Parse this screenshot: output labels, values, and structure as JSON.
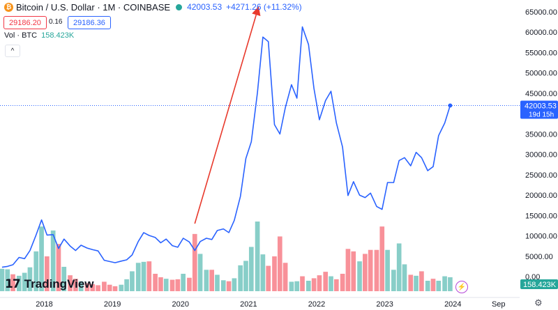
{
  "header": {
    "coin_symbol": "₿",
    "symbol": "Bitcoin / U.S. Dollar · 1M · COINBASE",
    "last_price": "42003.53",
    "change": "+4271.26 (+11.32%)"
  },
  "trade": {
    "sell_price": "29186.20",
    "spread": "0.16",
    "buy_price": "29186.36"
  },
  "volume": {
    "label": "Vol · BTC",
    "value": "158.423K"
  },
  "collapse_icon": "^",
  "branding": {
    "logo_mark": "17",
    "name": "TradingView"
  },
  "colors": {
    "line": "#2962ff",
    "vol_up": "#26a69a",
    "vol_down": "#f23645",
    "arrow": "#e8392c",
    "gridline": "#f0f3fa"
  },
  "chart_data": {
    "type": "line",
    "title": "Bitcoin / U.S. Dollar · 1M · COINBASE",
    "x_unit": "year",
    "y_axis_side": "right",
    "ylim": [
      0,
      67000
    ],
    "y_ticks": [
      0,
      5000,
      10000,
      15000,
      20000,
      25000,
      30000,
      35000,
      40000,
      45000,
      50000,
      55000,
      60000,
      65000
    ],
    "y_tick_labels": [
      "0.00",
      "5000.00",
      "10000.00",
      "15000.00",
      "20000.00",
      "25000.00",
      "30000.00",
      "35000.00",
      "40000.00",
      "45000.00",
      "50000.00",
      "55000.00",
      "60000.00",
      "65000.00"
    ],
    "x_tick_labels": [
      "2018",
      "2019",
      "2020",
      "2021",
      "2022",
      "2023",
      "2024",
      "Sep"
    ],
    "x_tick_values": [
      2018.0,
      2019.0,
      2020.0,
      2021.0,
      2022.0,
      2023.0,
      2024.0,
      2024.67
    ],
    "xlim": [
      2017.35,
      2024.98
    ],
    "series": [
      {
        "values": [
          [
            2017.38,
            2300
          ],
          [
            2017.46,
            2500
          ],
          [
            2017.54,
            2900
          ],
          [
            2017.63,
            4700
          ],
          [
            2017.71,
            4400
          ],
          [
            2017.79,
            6400
          ],
          [
            2017.88,
            10200
          ],
          [
            2017.96,
            13900
          ],
          [
            2018.04,
            10200
          ],
          [
            2018.13,
            10300
          ],
          [
            2018.21,
            6900
          ],
          [
            2018.29,
            9200
          ],
          [
            2018.38,
            7500
          ],
          [
            2018.46,
            6400
          ],
          [
            2018.54,
            7700
          ],
          [
            2018.63,
            7000
          ],
          [
            2018.71,
            6600
          ],
          [
            2018.79,
            6300
          ],
          [
            2018.88,
            4000
          ],
          [
            2018.96,
            3700
          ],
          [
            2019.04,
            3400
          ],
          [
            2019.13,
            3800
          ],
          [
            2019.21,
            4100
          ],
          [
            2019.29,
            5300
          ],
          [
            2019.38,
            8600
          ],
          [
            2019.46,
            10800
          ],
          [
            2019.54,
            10100
          ],
          [
            2019.63,
            9600
          ],
          [
            2019.71,
            8300
          ],
          [
            2019.79,
            9200
          ],
          [
            2019.88,
            7600
          ],
          [
            2019.96,
            7200
          ],
          [
            2020.04,
            9400
          ],
          [
            2020.13,
            8500
          ],
          [
            2020.21,
            6400
          ],
          [
            2020.29,
            8600
          ],
          [
            2020.38,
            9400
          ],
          [
            2020.46,
            9100
          ],
          [
            2020.54,
            11300
          ],
          [
            2020.63,
            11700
          ],
          [
            2020.71,
            10800
          ],
          [
            2020.79,
            13800
          ],
          [
            2020.88,
            19700
          ],
          [
            2020.96,
            29000
          ],
          [
            2021.04,
            33100
          ],
          [
            2021.13,
            45200
          ],
          [
            2021.21,
            58800
          ],
          [
            2021.29,
            57700
          ],
          [
            2021.38,
            37300
          ],
          [
            2021.46,
            35000
          ],
          [
            2021.54,
            41500
          ],
          [
            2021.63,
            47100
          ],
          [
            2021.71,
            43800
          ],
          [
            2021.79,
            61300
          ],
          [
            2021.88,
            57000
          ],
          [
            2021.96,
            46200
          ],
          [
            2022.04,
            38500
          ],
          [
            2022.13,
            43200
          ],
          [
            2022.21,
            45500
          ],
          [
            2022.29,
            37700
          ],
          [
            2022.38,
            31800
          ],
          [
            2022.46,
            19900
          ],
          [
            2022.54,
            23300
          ],
          [
            2022.63,
            20000
          ],
          [
            2022.71,
            19400
          ],
          [
            2022.79,
            20500
          ],
          [
            2022.88,
            17200
          ],
          [
            2022.96,
            16500
          ],
          [
            2023.04,
            23100
          ],
          [
            2023.13,
            23100
          ],
          [
            2023.21,
            28500
          ],
          [
            2023.29,
            29200
          ],
          [
            2023.38,
            27200
          ],
          [
            2023.46,
            30500
          ],
          [
            2023.54,
            29200
          ],
          [
            2023.63,
            26000
          ],
          [
            2023.71,
            27000
          ],
          [
            2023.79,
            34600
          ],
          [
            2023.88,
            37700
          ],
          [
            2023.96,
            42003.53
          ]
        ]
      }
    ],
    "last_price_marker": {
      "value": 42003.53,
      "label": "42003.53",
      "countdown": "19d 15h"
    },
    "volume": {
      "max_scale": 14000,
      "bars": [
        {
          "x": 2017.38,
          "v": 4500,
          "up": true
        },
        {
          "x": 2017.46,
          "v": 4400,
          "up": true
        },
        {
          "x": 2017.54,
          "v": 3400,
          "up": false
        },
        {
          "x": 2017.63,
          "v": 3100,
          "up": true
        },
        {
          "x": 2017.71,
          "v": 3700,
          "up": true
        },
        {
          "x": 2017.79,
          "v": 4800,
          "up": true
        },
        {
          "x": 2017.88,
          "v": 8000,
          "up": true
        },
        {
          "x": 2017.96,
          "v": 13000,
          "up": true
        },
        {
          "x": 2018.04,
          "v": 7000,
          "up": false
        },
        {
          "x": 2018.13,
          "v": 12200,
          "up": true
        },
        {
          "x": 2018.21,
          "v": 9500,
          "up": false
        },
        {
          "x": 2018.29,
          "v": 4900,
          "up": true
        },
        {
          "x": 2018.38,
          "v": 3200,
          "up": false
        },
        {
          "x": 2018.46,
          "v": 2500,
          "up": false
        },
        {
          "x": 2018.54,
          "v": 2000,
          "up": true
        },
        {
          "x": 2018.63,
          "v": 1600,
          "up": false
        },
        {
          "x": 2018.71,
          "v": 1400,
          "up": false
        },
        {
          "x": 2018.79,
          "v": 1200,
          "up": false
        },
        {
          "x": 2018.88,
          "v": 1900,
          "up": false
        },
        {
          "x": 2018.96,
          "v": 1300,
          "up": false
        },
        {
          "x": 2019.04,
          "v": 1000,
          "up": false
        },
        {
          "x": 2019.13,
          "v": 1300,
          "up": true
        },
        {
          "x": 2019.21,
          "v": 2400,
          "up": true
        },
        {
          "x": 2019.29,
          "v": 4000,
          "up": true
        },
        {
          "x": 2019.38,
          "v": 5700,
          "up": true
        },
        {
          "x": 2019.46,
          "v": 5900,
          "up": true
        },
        {
          "x": 2019.54,
          "v": 6000,
          "up": false
        },
        {
          "x": 2019.63,
          "v": 3500,
          "up": false
        },
        {
          "x": 2019.71,
          "v": 2800,
          "up": false
        },
        {
          "x": 2019.79,
          "v": 2500,
          "up": true
        },
        {
          "x": 2019.88,
          "v": 2300,
          "up": false
        },
        {
          "x": 2019.96,
          "v": 2400,
          "up": false
        },
        {
          "x": 2020.04,
          "v": 3500,
          "up": true
        },
        {
          "x": 2020.13,
          "v": 2700,
          "up": false
        },
        {
          "x": 2020.21,
          "v": 11500,
          "up": false
        },
        {
          "x": 2020.29,
          "v": 7500,
          "up": true
        },
        {
          "x": 2020.38,
          "v": 4300,
          "up": true
        },
        {
          "x": 2020.46,
          "v": 4300,
          "up": false
        },
        {
          "x": 2020.54,
          "v": 3300,
          "up": true
        },
        {
          "x": 2020.63,
          "v": 2200,
          "up": true
        },
        {
          "x": 2020.71,
          "v": 2000,
          "up": false
        },
        {
          "x": 2020.79,
          "v": 2600,
          "up": true
        },
        {
          "x": 2020.88,
          "v": 5200,
          "up": true
        },
        {
          "x": 2020.96,
          "v": 6100,
          "up": true
        },
        {
          "x": 2021.04,
          "v": 8900,
          "up": true
        },
        {
          "x": 2021.13,
          "v": 14000,
          "up": true
        },
        {
          "x": 2021.21,
          "v": 7400,
          "up": true
        },
        {
          "x": 2021.29,
          "v": 5100,
          "up": false
        },
        {
          "x": 2021.38,
          "v": 7000,
          "up": false
        },
        {
          "x": 2021.46,
          "v": 11000,
          "up": false
        },
        {
          "x": 2021.54,
          "v": 5700,
          "up": false
        },
        {
          "x": 2021.63,
          "v": 1900,
          "up": true
        },
        {
          "x": 2021.71,
          "v": 2000,
          "up": true
        },
        {
          "x": 2021.79,
          "v": 3000,
          "up": false
        },
        {
          "x": 2021.88,
          "v": 2100,
          "up": true
        },
        {
          "x": 2021.96,
          "v": 2600,
          "up": false
        },
        {
          "x": 2022.04,
          "v": 3200,
          "up": false
        },
        {
          "x": 2022.13,
          "v": 3900,
          "up": false
        },
        {
          "x": 2022.21,
          "v": 3000,
          "up": true
        },
        {
          "x": 2022.29,
          "v": 2400,
          "up": false
        },
        {
          "x": 2022.38,
          "v": 3500,
          "up": false
        },
        {
          "x": 2022.46,
          "v": 8500,
          "up": false
        },
        {
          "x": 2022.54,
          "v": 8000,
          "up": false
        },
        {
          "x": 2022.63,
          "v": 6000,
          "up": true
        },
        {
          "x": 2022.71,
          "v": 7500,
          "up": false
        },
        {
          "x": 2022.79,
          "v": 8300,
          "up": false
        },
        {
          "x": 2022.88,
          "v": 8300,
          "up": false
        },
        {
          "x": 2022.96,
          "v": 13000,
          "up": false
        },
        {
          "x": 2023.04,
          "v": 8300,
          "up": true
        },
        {
          "x": 2023.13,
          "v": 4300,
          "up": true
        },
        {
          "x": 2023.21,
          "v": 9600,
          "up": true
        },
        {
          "x": 2023.29,
          "v": 5400,
          "up": true
        },
        {
          "x": 2023.38,
          "v": 3300,
          "up": false
        },
        {
          "x": 2023.46,
          "v": 3100,
          "up": true
        },
        {
          "x": 2023.54,
          "v": 4000,
          "up": false
        },
        {
          "x": 2023.63,
          "v": 2100,
          "up": true
        },
        {
          "x": 2023.71,
          "v": 2500,
          "up": false
        },
        {
          "x": 2023.79,
          "v": 2100,
          "up": true
        },
        {
          "x": 2023.88,
          "v": 3000,
          "up": true
        },
        {
          "x": 2023.96,
          "v": 2800,
          "up": true
        }
      ]
    },
    "annotation": {
      "type": "arrow",
      "from": [
        2020.21,
        13000
      ],
      "to": [
        2021.13,
        66000
      ]
    },
    "volume_axis_label": "158.423K",
    "grid": false
  }
}
